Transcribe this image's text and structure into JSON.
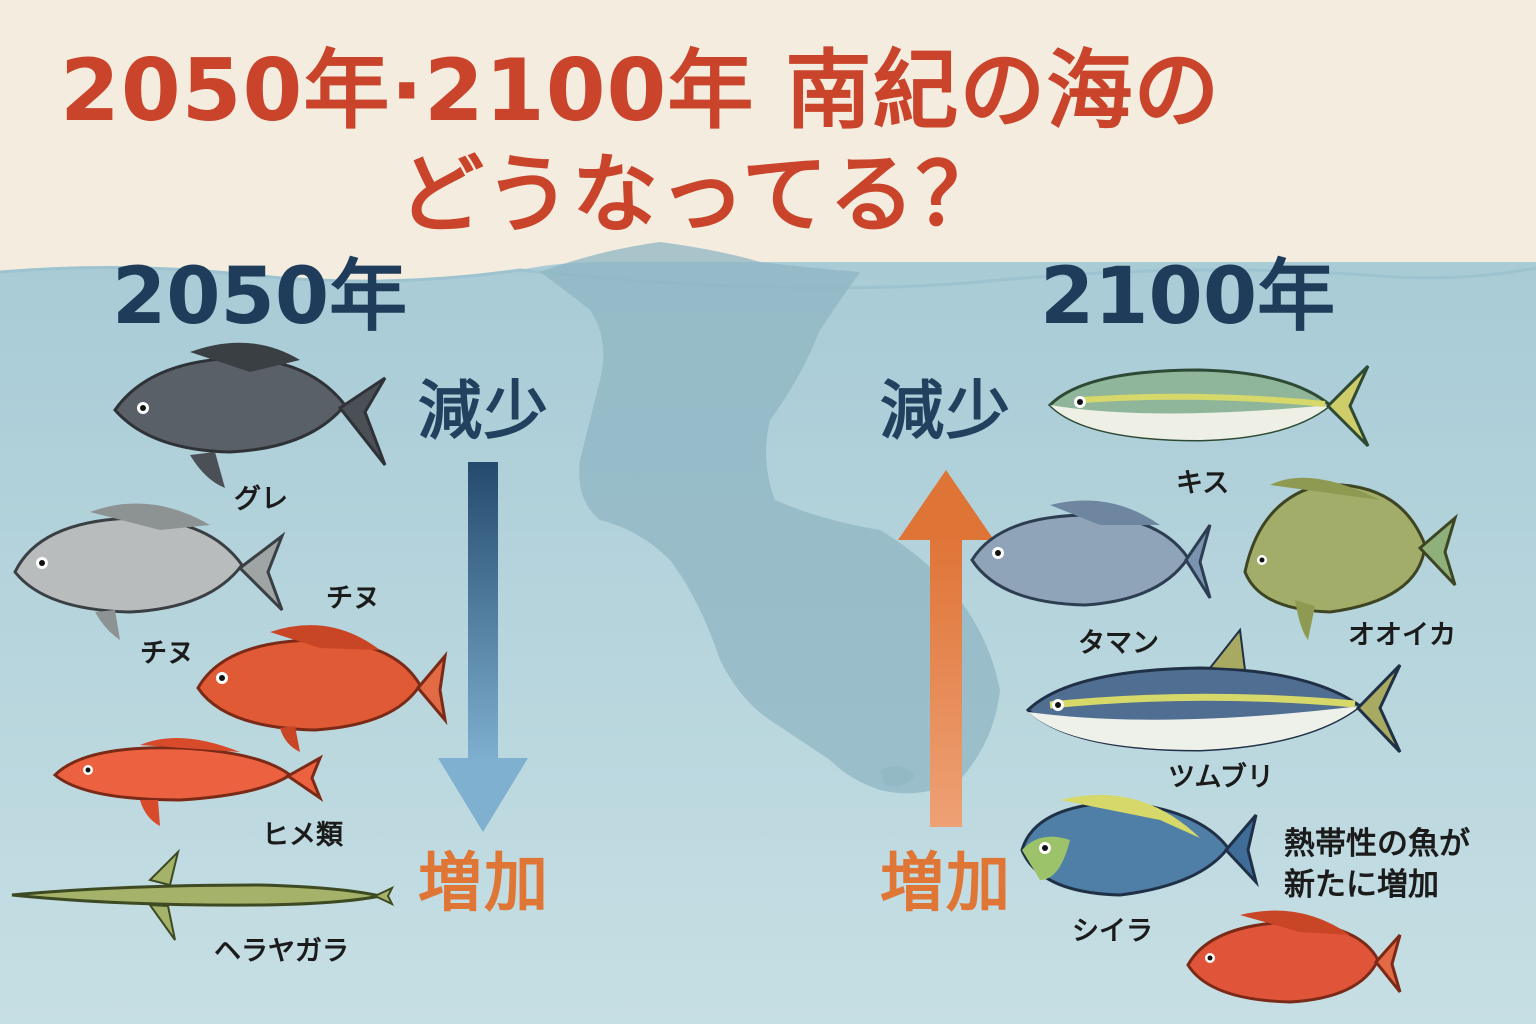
{
  "title": {
    "line1": "2050年·2100年  南紀の海の",
    "line2": "どうなってる？"
  },
  "left_panel": {
    "year": "2050年",
    "decrease_label": "減少",
    "increase_label": "増加",
    "arrow_direction": "down",
    "fish": [
      {
        "label": "グレ",
        "icon": "dark-grey-fish-icon"
      },
      {
        "label": "チヌ",
        "icon": "silver-fish-icon"
      },
      {
        "label": "チヌ",
        "icon": "red-grouper-fish-icon"
      },
      {
        "label": "ヒメ類",
        "icon": "red-slender-fish-icon"
      },
      {
        "label": "ヘラヤガラ",
        "icon": "needle-fish-icon"
      }
    ]
  },
  "right_panel": {
    "year": "2100年",
    "decrease_label": "減少",
    "increase_label": "増加",
    "arrow_direction": "up",
    "fish": [
      {
        "label": "キス",
        "icon": "yellowtail-fish-icon"
      },
      {
        "label": "タマン",
        "icon": "blue-grey-fish-icon"
      },
      {
        "label": "オオイカ",
        "icon": "green-surgeonfish-icon"
      },
      {
        "label": "ツムブリ",
        "icon": "rainbow-runner-fish-icon"
      },
      {
        "label": "シイラ",
        "icon": "mahi-fish-icon"
      },
      {
        "label": "",
        "icon": "red-snapper-fish-icon"
      }
    ],
    "note_line1": "熱帯性の魚が",
    "note_line2": "新たに増加"
  },
  "colors": {
    "title": "#c9442a",
    "year": "#1f3c5a",
    "decrease": "#21415f",
    "increase": "#e07636",
    "sea": "#b9d6df",
    "sky": "#f3ecdf",
    "land": "#8fb6c3"
  }
}
